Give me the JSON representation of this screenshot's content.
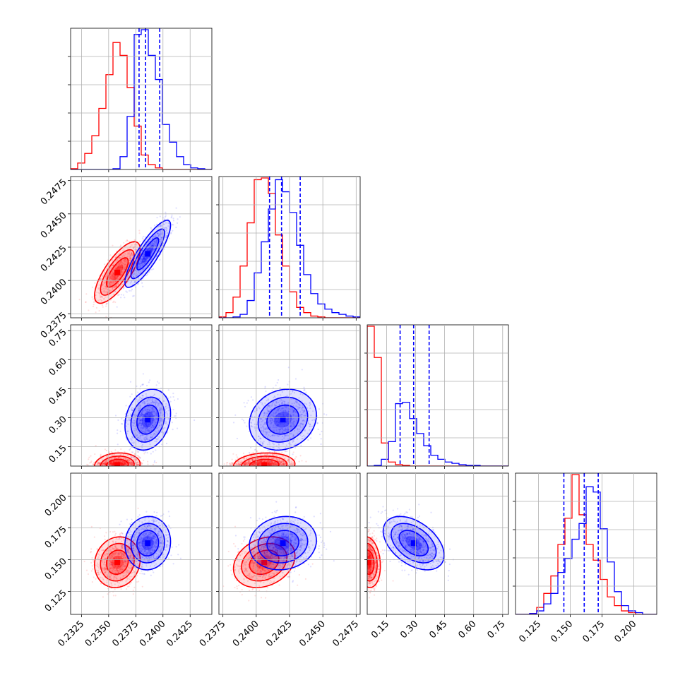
{
  "chart_data": {
    "type": "corner",
    "title": "",
    "grid": true,
    "colors": {
      "red": "#ff0000",
      "blue": "#0000ff",
      "grid": "#b0b0b0"
    },
    "parameters": [
      {
        "range": [
          0.2315,
          0.2445
        ],
        "ticks": [
          0.2325,
          0.235,
          0.2375,
          0.24,
          0.2425
        ],
        "tick_labels": [
          "0.2325",
          "0.2350",
          "0.2375",
          "0.2400",
          "0.2425"
        ]
      },
      {
        "range": [
          0.2372,
          0.2478
        ],
        "ticks": [
          0.2375,
          0.24,
          0.2425,
          0.245,
          0.2475
        ],
        "tick_labels": [
          "0.2375",
          "0.2400",
          "0.2425",
          "0.2450",
          "0.2475"
        ]
      },
      {
        "range": [
          0.05,
          0.78
        ],
        "ticks": [
          0.15,
          0.3,
          0.45,
          0.6,
          0.75
        ],
        "tick_labels": [
          "0.15",
          "0.30",
          "0.45",
          "0.60",
          "0.75"
        ]
      },
      {
        "range": [
          0.107,
          0.218
        ],
        "ticks": [
          0.125,
          0.15,
          0.175,
          0.2
        ],
        "tick_labels": [
          "0.125",
          "0.150",
          "0.175",
          "0.200"
        ]
      }
    ],
    "series": [
      {
        "color": "red",
        "histograms": [
          {
            "edges": [
              0.2315,
              0.2445
            ],
            "counts": [
              0.5,
              4,
              10,
              21,
              38,
              59,
              79,
              71,
              51,
              27,
              9,
              3,
              1,
              0,
              0,
              0,
              0,
              0,
              0,
              0
            ]
          },
          {
            "edges": [
              0.2372,
              0.2478
            ],
            "counts": [
              0.5,
              3,
              12,
              30,
              55,
              80,
              81,
              72,
              48,
              30,
              15,
              6,
              3,
              1,
              0.5,
              0,
              0,
              0,
              0,
              0
            ]
          },
          {
            "edges": [
              0.05,
              0.78
            ],
            "counts": [
              103,
              80,
              17,
              3,
              1,
              0.5,
              0,
              0,
              0,
              0,
              0,
              0,
              0,
              0,
              0,
              0,
              0,
              0,
              0,
              0
            ]
          },
          {
            "edges": [
              0.107,
              0.218
            ],
            "counts": [
              0,
              0,
              0.5,
              4,
              12,
              22,
              40,
              55,
              80,
              57,
              40,
              31,
              20,
              10,
              5,
              2,
              1,
              0,
              0,
              0
            ]
          }
        ]
      },
      {
        "color": "blue",
        "histograms": [
          {
            "edges": [
              0.2315,
              0.2445
            ],
            "counts": [
              0,
              0,
              0,
              0,
              0,
              0,
              0.5,
              8,
              33,
              84,
              87,
              71,
              56,
              28,
              17,
              8,
              3,
              1,
              0.5,
              0
            ]
          },
          {
            "edges": [
              0.2372,
              0.2478
            ],
            "counts": [
              0,
              0,
              0.5,
              2,
              10,
              26,
              44,
              63,
              80,
              73,
              61,
              42,
              25,
              14,
              8,
              5,
              3,
              2,
              1,
              0.5
            ]
          },
          {
            "edges": [
              0.05,
              0.78
            ],
            "counts": [
              0,
              0.5,
              5,
              18,
              46,
              47,
              35,
              24,
              15,
              8,
              5,
              3,
              2,
              1,
              0.5,
              0.5,
              0,
              0,
              0,
              0
            ]
          },
          {
            "edges": [
              0.107,
              0.218
            ],
            "counts": [
              0,
              0,
              0.5,
              2,
              6,
              12,
              24,
              32,
              43,
              52,
              73,
              70,
              49,
              30,
              13,
              5,
              2,
              1,
              0,
              0
            ]
          }
        ]
      }
    ],
    "quantile_lines": [
      [
        0.2378,
        0.2384,
        0.2397
      ],
      [
        0.241,
        0.2419,
        0.2433
      ],
      [
        0.22,
        0.29,
        0.37
      ],
      [
        0.145,
        0.161,
        0.172
      ]
    ],
    "gaussians": [
      {
        "color": "red",
        "mean": [
          0.2358,
          0.2406,
          0.055,
          0.148
        ],
        "sd": [
          0.001,
          0.0011,
          0.03,
          0.0095
        ],
        "corr": [
          [
            1,
            0.75,
            0.1,
            0.1
          ],
          [
            0.75,
            1,
            0.1,
            0.25
          ],
          [
            0.1,
            0.1,
            1,
            -0.15
          ],
          [
            0.1,
            0.25,
            -0.15,
            1
          ]
        ]
      },
      {
        "color": "blue",
        "mean": [
          0.2386,
          0.242,
          0.29,
          0.163
        ],
        "sd": [
          0.001,
          0.0012,
          0.075,
          0.01
        ],
        "corr": [
          [
            1,
            0.85,
            0.2,
            0.05
          ],
          [
            0.85,
            1,
            0.15,
            0.1
          ],
          [
            0.2,
            0.15,
            1,
            -0.45
          ],
          [
            0.05,
            0.1,
            -0.45,
            1
          ]
        ]
      }
    ]
  }
}
